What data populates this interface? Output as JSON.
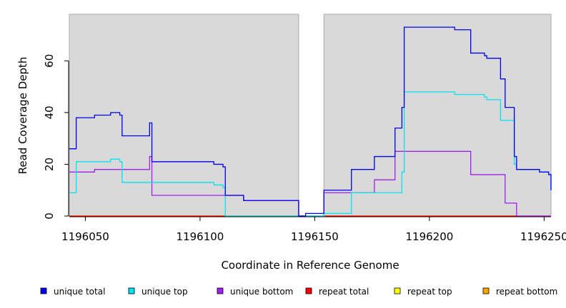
{
  "chart_data": {
    "type": "line",
    "step": true,
    "xlabel": "Coordinate in Reference Genome",
    "ylabel": "Read Coverage Depth",
    "xlim": [
      1196043,
      1196253
    ],
    "ylim": [
      0,
      78
    ],
    "x_ticks": [
      1196050,
      1196100,
      1196150,
      1196200,
      1196250
    ],
    "x_tick_labels": [
      "1196050",
      "1196100",
      "1196150",
      "1196200",
      "1196250"
    ],
    "y_ticks": [
      0,
      20,
      40,
      60
    ],
    "y_tick_labels": [
      "0",
      "20",
      "40",
      "60"
    ],
    "background_color": "#d9d9d9",
    "grid": false,
    "gaps": [
      [
        1196143,
        1196154
      ]
    ],
    "legend_position": "bottom",
    "series": [
      {
        "name": "unique total",
        "color": "#0000ee",
        "points": [
          [
            1196043,
            26
          ],
          [
            1196046,
            38
          ],
          [
            1196054,
            39
          ],
          [
            1196061,
            40
          ],
          [
            1196065,
            39
          ],
          [
            1196066,
            31
          ],
          [
            1196078,
            36
          ],
          [
            1196079,
            21
          ],
          [
            1196106,
            20
          ],
          [
            1196110,
            19
          ],
          [
            1196111,
            8
          ],
          [
            1196119,
            6
          ],
          [
            1196143,
            0
          ],
          [
            1196146,
            1
          ],
          [
            1196154,
            10
          ],
          [
            1196166,
            18
          ],
          [
            1196176,
            23
          ],
          [
            1196185,
            34
          ],
          [
            1196188,
            42
          ],
          [
            1196189,
            73
          ],
          [
            1196211,
            72
          ],
          [
            1196218,
            63
          ],
          [
            1196224,
            62
          ],
          [
            1196225,
            61
          ],
          [
            1196231,
            53
          ],
          [
            1196233,
            42
          ],
          [
            1196237,
            23
          ],
          [
            1196238,
            18
          ],
          [
            1196248,
            17
          ],
          [
            1196252,
            16
          ],
          [
            1196253,
            10
          ]
        ]
      },
      {
        "name": "unique top",
        "color": "#00e5ee",
        "points": [
          [
            1196043,
            9
          ],
          [
            1196046,
            21
          ],
          [
            1196054,
            21
          ],
          [
            1196061,
            22
          ],
          [
            1196065,
            21
          ],
          [
            1196066,
            13
          ],
          [
            1196106,
            12
          ],
          [
            1196110,
            11
          ],
          [
            1196111,
            0
          ],
          [
            1196143,
            0
          ],
          [
            1196154,
            1
          ],
          [
            1196166,
            9
          ],
          [
            1196176,
            9
          ],
          [
            1196188,
            17
          ],
          [
            1196189,
            48
          ],
          [
            1196211,
            47
          ],
          [
            1196224,
            46
          ],
          [
            1196225,
            45
          ],
          [
            1196231,
            37
          ],
          [
            1196237,
            20
          ],
          [
            1196238,
            18
          ],
          [
            1196248,
            17
          ],
          [
            1196252,
            16
          ],
          [
            1196253,
            10
          ]
        ]
      },
      {
        "name": "unique bottom",
        "color": "#a020f0",
        "points": [
          [
            1196043,
            17
          ],
          [
            1196054,
            18
          ],
          [
            1196078,
            23
          ],
          [
            1196079,
            8
          ],
          [
            1196111,
            8
          ],
          [
            1196119,
            6
          ],
          [
            1196143,
            0
          ],
          [
            1196154,
            9
          ],
          [
            1196176,
            14
          ],
          [
            1196185,
            25
          ],
          [
            1196218,
            16
          ],
          [
            1196233,
            5
          ],
          [
            1196238,
            0
          ],
          [
            1196253,
            0
          ]
        ]
      },
      {
        "name": "repeat total",
        "color": "#ff0000",
        "points": [
          [
            1196043,
            0
          ],
          [
            1196253,
            0
          ]
        ]
      },
      {
        "name": "repeat top",
        "color": "#ffff00",
        "points": [
          [
            1196043,
            0
          ],
          [
            1196253,
            0
          ]
        ]
      },
      {
        "name": "repeat bottom",
        "color": "#ffa500",
        "points": [
          [
            1196043,
            0
          ],
          [
            1196253,
            0
          ]
        ]
      }
    ]
  }
}
